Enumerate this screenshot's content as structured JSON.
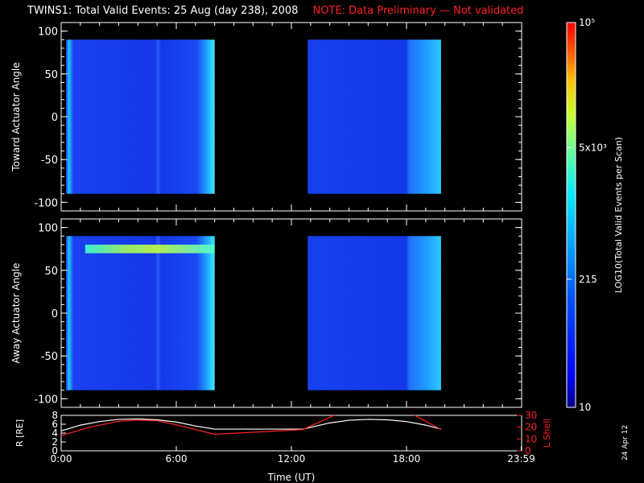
{
  "title": "TWINS1: Total Valid Events: 25 Aug (day 238), 2008",
  "note": "NOTE: Data Preliminary — Not validated",
  "stamp": "24 Apr 12",
  "colorbar": {
    "label": "LOG10(Total Valid Events per Scan)",
    "ticks": [
      {
        "value": 10,
        "label": "10"
      },
      {
        "value": 215,
        "label": "215"
      },
      {
        "value": 5000,
        "label": "5x10³"
      },
      {
        "value": 100000,
        "label": "10⁵"
      }
    ],
    "range": [
      10,
      100000
    ],
    "scale": "log",
    "colormap": [
      "#00007f",
      "#0000ff",
      "#0060ff",
      "#00c0ff",
      "#40ffc0",
      "#c0ff40",
      "#ffc000",
      "#ff4000",
      "#ff0000"
    ]
  },
  "chart_data": [
    {
      "type": "heatmap",
      "ylabel": "Toward Actuator Angle",
      "xlim": [
        0,
        24
      ],
      "ylim": [
        -110,
        110
      ],
      "yticks": [
        -100,
        -50,
        0,
        50,
        100
      ],
      "data_blocks": [
        {
          "x": [
            0,
            8.0
          ],
          "y": [
            -90,
            90
          ],
          "level": "low (~50-150 events)"
        },
        {
          "x": [
            12.6,
            19.8
          ],
          "y": [
            -90,
            90
          ],
          "level": "low (~50-150 events)"
        }
      ],
      "background": "black"
    },
    {
      "type": "heatmap",
      "ylabel": "Away Actuator Angle",
      "xlim": [
        0,
        24
      ],
      "ylim": [
        -110,
        110
      ],
      "yticks": [
        -100,
        -50,
        0,
        50,
        100
      ],
      "data_blocks": [
        {
          "x": [
            0,
            8.0
          ],
          "y": [
            -90,
            90
          ],
          "level": "low (~50-150 events)"
        },
        {
          "x": [
            12.6,
            19.8
          ],
          "y": [
            -90,
            90
          ],
          "level": "low (~50-150 events)"
        }
      ],
      "features": [
        {
          "x": [
            1.0,
            8.0
          ],
          "y": [
            70,
            80
          ],
          "level": "elevated (~1000-3000 events)"
        }
      ],
      "background": "black"
    },
    {
      "type": "line",
      "ylabel": "R [RE]",
      "y2label": "L Shell",
      "xlabel": "Time (UT)",
      "xlim": [
        0,
        24
      ],
      "ylim": [
        0,
        8
      ],
      "yticks": [
        0,
        2,
        4,
        6,
        8
      ],
      "y2lim": [
        0,
        30
      ],
      "y2ticks": [
        0,
        10,
        20,
        30
      ],
      "xticks": [
        {
          "value": 0,
          "label": "0:00"
        },
        {
          "value": 6,
          "label": "6:00"
        },
        {
          "value": 12,
          "label": "12:00"
        },
        {
          "value": 18,
          "label": "18:00"
        },
        {
          "value": 23.98,
          "label": "23:59"
        }
      ],
      "series": [
        {
          "axis": "left",
          "color": "#ffffff",
          "x": [
            0,
            1,
            2,
            3,
            4,
            5,
            6,
            7,
            8,
            12.6,
            14,
            15,
            16,
            17,
            18,
            19,
            19.8
          ],
          "y": [
            4.5,
            5.8,
            6.6,
            7.1,
            7.2,
            7.0,
            6.5,
            5.6,
            4.9,
            4.9,
            6.3,
            6.9,
            7.1,
            7.0,
            6.6,
            5.8,
            4.9
          ]
        },
        {
          "axis": "right",
          "color": "#ff2020",
          "x": [
            0,
            1.5,
            3,
            4,
            5,
            6,
            8,
            12.6,
            14.5,
            18.2,
            19.8
          ],
          "y": [
            13,
            20,
            25,
            26,
            25.5,
            22,
            14,
            18,
            32,
            32,
            18
          ]
        }
      ]
    }
  ]
}
